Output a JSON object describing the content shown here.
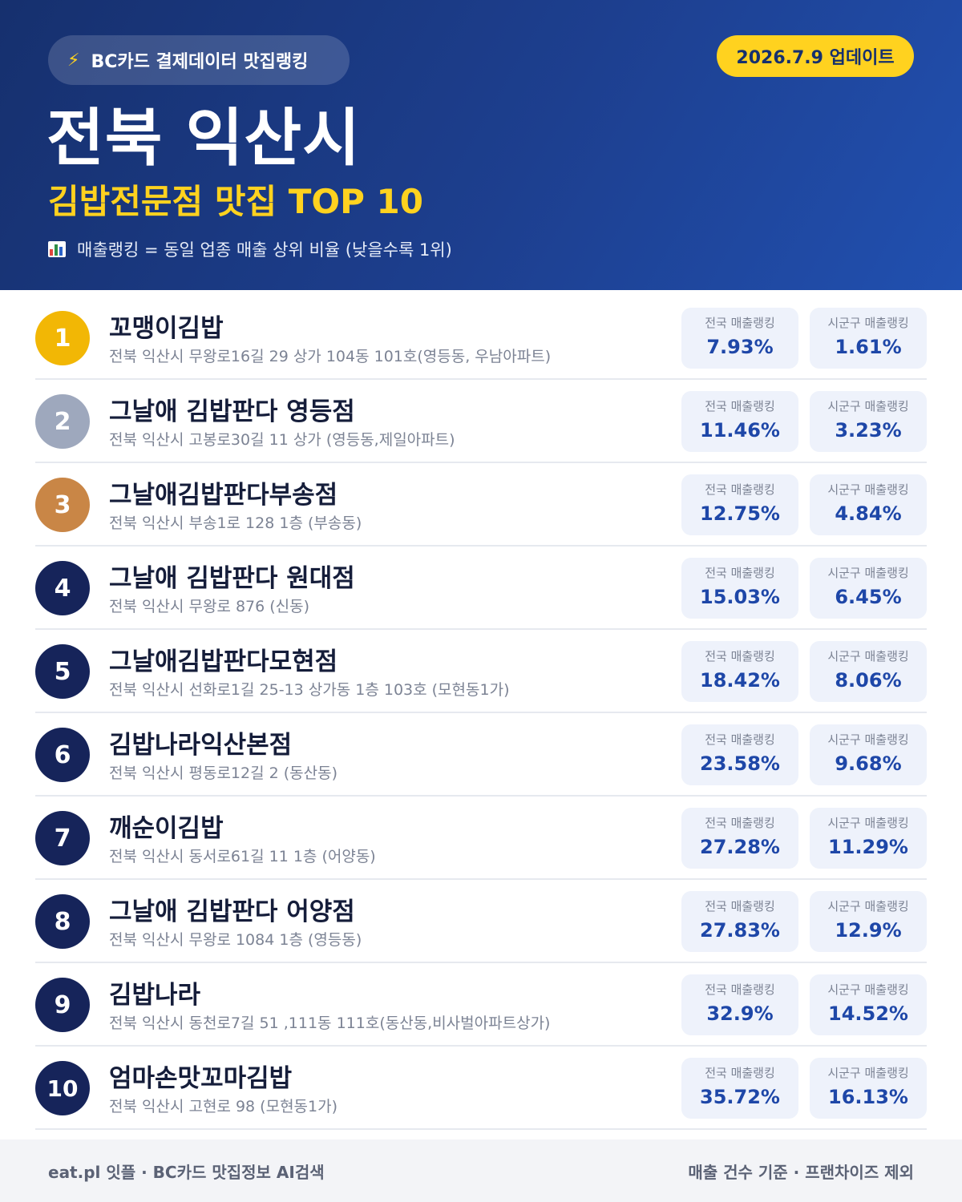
{
  "header": {
    "tag_icon": "lightning-icon",
    "tag_text": "BC카드 결제데이터 맛집랭킹",
    "update_date": "2026.7.9 업데이트",
    "city": "전북 익산시",
    "subtitle": "김밥전문점 맛집 TOP 10",
    "note_icon": "bar-chart-icon",
    "note": "매출랭킹 = 동일 업종 매출 상위 비율 (낮을수록 1위)"
  },
  "colors": {
    "header_bg": "#1d3f8f",
    "accent_yellow": "#ffd21f",
    "rank_gold": "#f2b705",
    "rank_silver": "#9ea8bd",
    "rank_bronze": "#c98646",
    "rank_default": "#16245a",
    "value_blue": "#1e47a8"
  },
  "stat_labels": {
    "national": "전국 매출랭킹",
    "local": "시군구 매출랭킹"
  },
  "restaurants": [
    {
      "rank": "1",
      "name": "꼬맹이김밥",
      "address": "전북 익산시 무왕로16길 29 상가 104동 101호(영등동, 우남아파트)",
      "national": "7.93%",
      "local": "1.61%",
      "badge_color": "#f2b705"
    },
    {
      "rank": "2",
      "name": "그날애 김밥판다 영등점",
      "address": "전북 익산시 고봉로30길 11 상가 (영등동,제일아파트)",
      "national": "11.46%",
      "local": "3.23%",
      "badge_color": "#9ea8bd"
    },
    {
      "rank": "3",
      "name": "그날애김밥판다부송점",
      "address": "전북 익산시 부송1로 128 1층 (부송동)",
      "national": "12.75%",
      "local": "4.84%",
      "badge_color": "#c98646"
    },
    {
      "rank": "4",
      "name": "그날애 김밥판다 원대점",
      "address": "전북 익산시 무왕로 876 (신동)",
      "national": "15.03%",
      "local": "6.45%",
      "badge_color": "#16245a"
    },
    {
      "rank": "5",
      "name": "그날애김밥판다모현점",
      "address": "전북 익산시 선화로1길 25-13 상가동 1층 103호 (모현동1가)",
      "national": "18.42%",
      "local": "8.06%",
      "badge_color": "#16245a"
    },
    {
      "rank": "6",
      "name": "김밥나라익산본점",
      "address": "전북 익산시 평동로12길 2 (동산동)",
      "national": "23.58%",
      "local": "9.68%",
      "badge_color": "#16245a"
    },
    {
      "rank": "7",
      "name": "깨순이김밥",
      "address": "전북 익산시 동서로61길 11 1층 (어양동)",
      "national": "27.28%",
      "local": "11.29%",
      "badge_color": "#16245a"
    },
    {
      "rank": "8",
      "name": "그날애 김밥판다 어양점",
      "address": "전북 익산시 무왕로 1084 1층 (영등동)",
      "national": "27.83%",
      "local": "12.9%",
      "badge_color": "#16245a"
    },
    {
      "rank": "9",
      "name": "김밥나라",
      "address": "전북 익산시 동천로7길 51 ,111동 111호(동산동,비사벌아파트상가)",
      "national": "32.9%",
      "local": "14.52%",
      "badge_color": "#16245a"
    },
    {
      "rank": "10",
      "name": "엄마손맛꼬마김밥",
      "address": "전북 익산시 고현로 98 (모현동1가)",
      "national": "35.72%",
      "local": "16.13%",
      "badge_color": "#16245a"
    }
  ],
  "footer": {
    "left": "eat.pl 잇플 · BC카드 맛집정보 AI검색",
    "right": "매출 건수 기준 · 프랜차이즈 제외"
  }
}
